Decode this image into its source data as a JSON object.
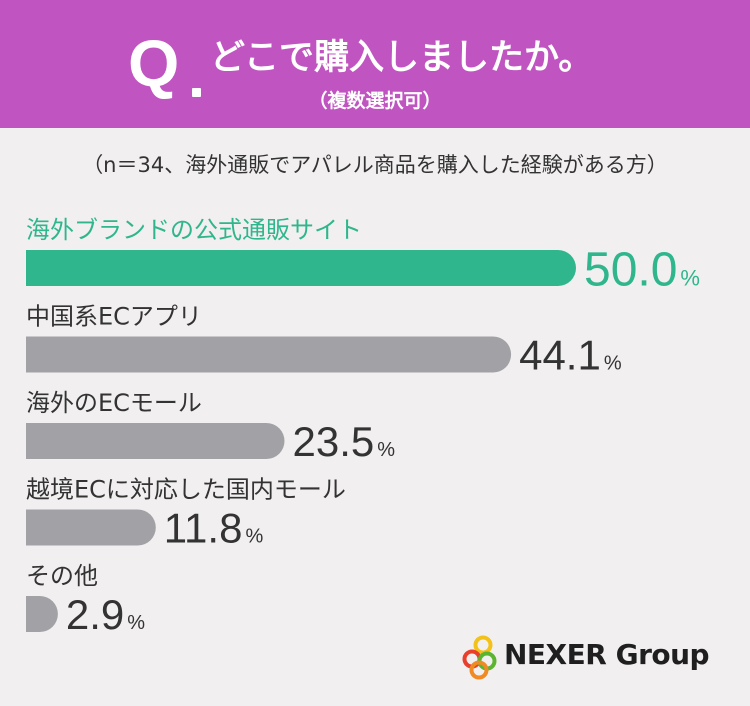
{
  "header": {
    "q_letter": "Q",
    "question": "どこで購入しましたか。",
    "note": "（複数選択可）"
  },
  "subtitle": "（n＝34、海外通販でアパレル商品を購入した経験がある方）",
  "logo": {
    "text": "NEXER Group"
  },
  "colors": {
    "header": "#c054c0",
    "highlight": "#2fb68c",
    "bar": "#a2a2a6",
    "text": "#333333"
  },
  "chart_data": {
    "type": "bar",
    "orientation": "horizontal",
    "categories": [
      "海外ブランドの公式通販サイト",
      "中国系ECアプリ",
      "海外のECモール",
      "越境ECに対応した国内モール",
      "その他"
    ],
    "values": [
      50.0,
      44.1,
      23.5,
      11.8,
      2.9
    ],
    "value_labels": [
      "50.0",
      "44.1",
      "23.5",
      "11.8",
      "2.9"
    ],
    "unit": "%",
    "highlight_index": 0,
    "xlim": [
      0,
      50
    ]
  }
}
